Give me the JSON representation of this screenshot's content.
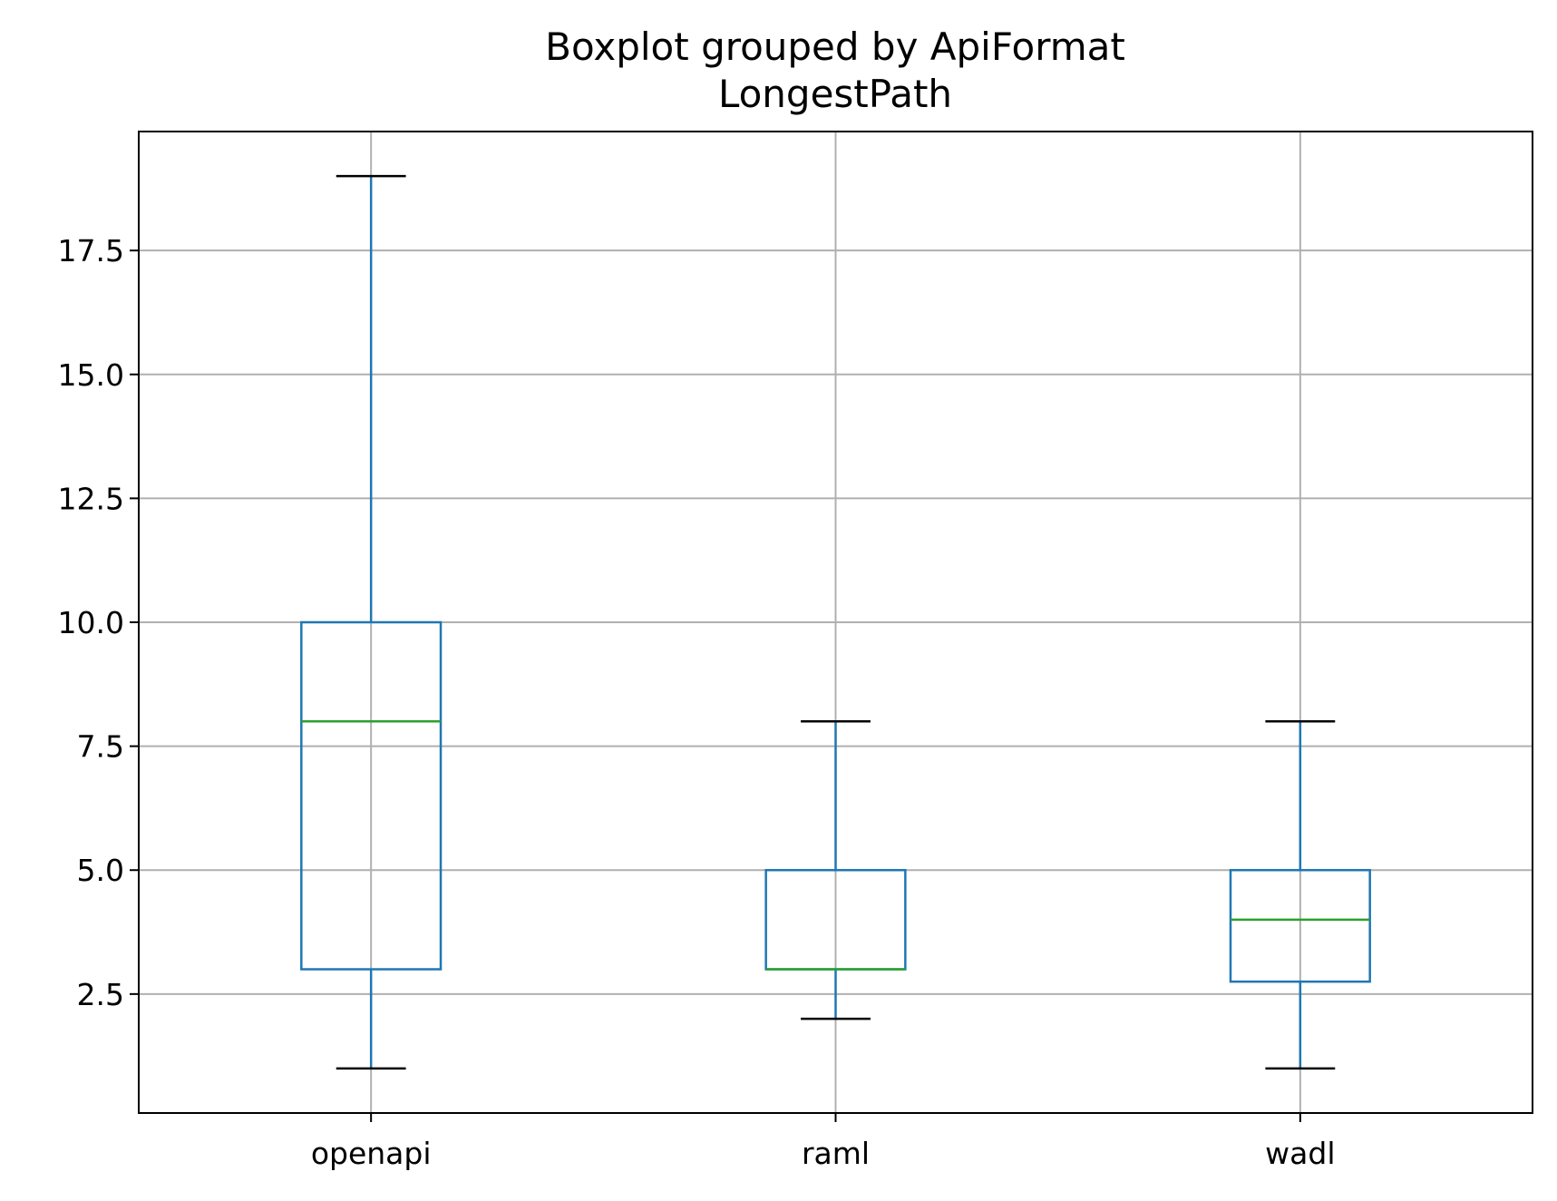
{
  "chart_data": {
    "type": "boxplot",
    "title": "Boxplot grouped by ApiFormat",
    "subtitle": "LongestPath",
    "xlabel": "",
    "ylabel": "",
    "categories": [
      "openapi",
      "raml",
      "wadl"
    ],
    "boxes": [
      {
        "category": "openapi",
        "whisker_low": 1,
        "q1": 3,
        "median": 8,
        "q3": 10,
        "whisker_high": 19
      },
      {
        "category": "raml",
        "whisker_low": 2,
        "q1": 3,
        "median": 3,
        "q3": 5,
        "whisker_high": 8
      },
      {
        "category": "wadl",
        "whisker_low": 1,
        "q1": 2.75,
        "median": 4,
        "q3": 5,
        "whisker_high": 8
      }
    ],
    "ylim": [
      0.1,
      19.9
    ],
    "yticks": [
      2.5,
      5.0,
      7.5,
      10.0,
      12.5,
      15.0,
      17.5
    ],
    "ytick_labels": [
      "2.5",
      "5.0",
      "7.5",
      "10.0",
      "12.5",
      "15.0",
      "17.5"
    ],
    "grid": true,
    "legend": "none",
    "colors": {
      "box": "#1f77b4",
      "median": "#2ca02c",
      "caps": "#000000",
      "grid": "#b0b0b0",
      "axes": "#000000"
    }
  }
}
